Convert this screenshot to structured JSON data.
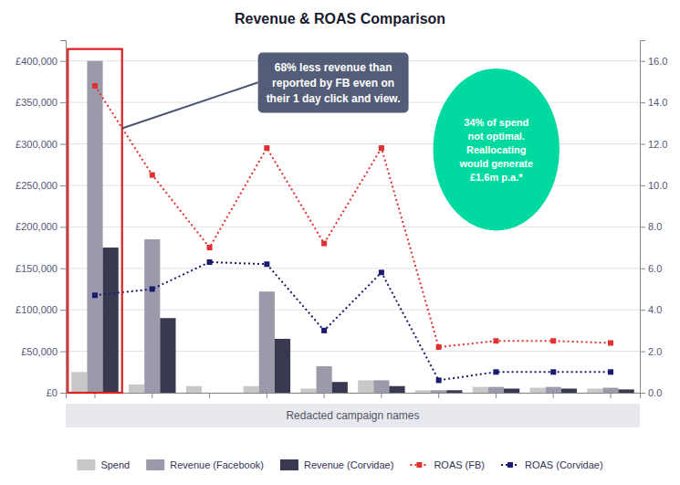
{
  "chart_data": {
    "type": "bar",
    "title": "Revenue & ROAS Comparison",
    "xlabel": "Redacted campaign names",
    "categories": [
      null,
      null,
      null,
      null,
      null,
      null,
      null,
      null,
      null,
      null
    ],
    "series": [
      {
        "name": "Spend",
        "type": "bar",
        "color": "#c8c8c8",
        "values": [
          25000,
          10000,
          8000,
          8000,
          5000,
          15000,
          3000,
          7000,
          6000,
          5000
        ]
      },
      {
        "name": "Revenue (Facebook)",
        "type": "bar",
        "color": "#9a9aaa",
        "values": [
          400000,
          185000,
          0,
          122000,
          32000,
          15000,
          3000,
          7000,
          7000,
          6000
        ]
      },
      {
        "name": "Revenue (Corvidae)",
        "type": "bar",
        "color": "#383850",
        "values": [
          175000,
          90000,
          0,
          65000,
          13000,
          8000,
          3000,
          5000,
          5000,
          4000
        ]
      },
      {
        "name": "ROAS (FB)",
        "type": "line",
        "axis": "y2",
        "color": "#e03030",
        "marker": "square",
        "line_style": "dotted",
        "values": [
          14.8,
          10.5,
          7.0,
          11.8,
          7.2,
          11.8,
          2.2,
          2.5,
          2.5,
          2.4
        ]
      },
      {
        "name": "ROAS (Corvidae)",
        "type": "line",
        "axis": "y2",
        "color": "#1a1a6e",
        "marker": "square",
        "line_style": "dotted",
        "values": [
          4.7,
          5.0,
          6.3,
          6.2,
          3.0,
          5.8,
          0.6,
          1.0,
          1.0,
          1.0
        ]
      }
    ],
    "ylim": [
      0,
      425000
    ],
    "yticks": [
      {
        "value": 0,
        "label": "£0"
      },
      {
        "value": 50000,
        "label": "£50,000"
      },
      {
        "value": 100000,
        "label": "£100,000"
      },
      {
        "value": 150000,
        "label": "£150,000"
      },
      {
        "value": 200000,
        "label": "£200,000"
      },
      {
        "value": 250000,
        "label": "£250,000"
      },
      {
        "value": 300000,
        "label": "£300,000"
      },
      {
        "value": 350000,
        "label": "£350,000"
      },
      {
        "value": 400000,
        "label": "£400,000"
      }
    ],
    "y2lim": [
      0,
      17.0
    ],
    "y2ticks": [
      {
        "value": 0.0,
        "label": "0.0"
      },
      {
        "value": 2.0,
        "label": "2.0"
      },
      {
        "value": 4.0,
        "label": "4.0"
      },
      {
        "value": 6.0,
        "label": "6.0"
      },
      {
        "value": 8.0,
        "label": "8.0"
      },
      {
        "value": 10.0,
        "label": "10.0"
      },
      {
        "value": 12.0,
        "label": "12.0"
      },
      {
        "value": 14.0,
        "label": "14.0"
      },
      {
        "value": 16.0,
        "label": "16.0"
      }
    ],
    "grid": true,
    "legend": "bottom",
    "annotations": [
      {
        "text": "68% less revenue than\nreported by FB even on\ntheir 1 day click and view.",
        "color": "#4a5470"
      },
      {
        "text": "34% of spend\nnot optimal.\nReallocating\nwould generate\n£1.6m p.a.*",
        "color": "#00d9a0"
      }
    ]
  }
}
